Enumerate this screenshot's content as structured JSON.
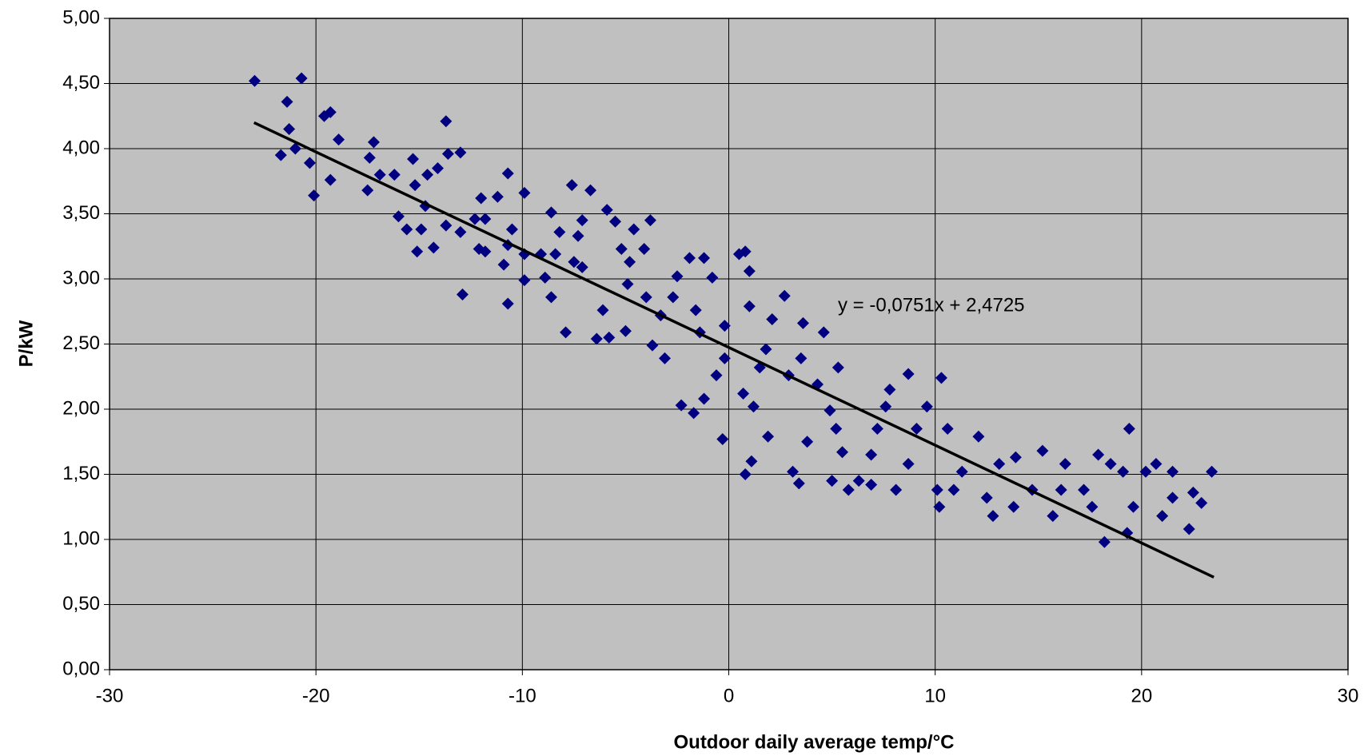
{
  "chart_data": {
    "type": "scatter",
    "xlabel": "Outdoor daily average temp/°C",
    "ylabel": "P/kW",
    "annotation": "y = -0,0751x + 2,4725",
    "xlim": [
      -30,
      30
    ],
    "ylim": [
      0,
      5
    ],
    "xticks": [
      -30,
      -20,
      -10,
      0,
      10,
      20,
      30
    ],
    "yticks": [
      {
        "value": 0,
        "label": "0,00"
      },
      {
        "value": 0.5,
        "label": "0,50"
      },
      {
        "value": 1,
        "label": "1,00"
      },
      {
        "value": 1.5,
        "label": "1,50"
      },
      {
        "value": 2,
        "label": "2,00"
      },
      {
        "value": 2.5,
        "label": "2,50"
      },
      {
        "value": 3,
        "label": "3,00"
      },
      {
        "value": 3.5,
        "label": "3,50"
      },
      {
        "value": 4,
        "label": "4,00"
      },
      {
        "value": 4.5,
        "label": "4,50"
      },
      {
        "value": 5,
        "label": "5,00"
      }
    ],
    "grid": true,
    "background": "#c0c0c0",
    "series": [
      {
        "color": "#000080",
        "x": [
          -22.97,
          -20.7,
          -21.4,
          -21.3,
          -21.7,
          -21.0,
          -19.3,
          -19.6,
          -18.9,
          -20.3,
          -19.3,
          -20.1,
          -17.2,
          -17.4,
          -17.5,
          -16.9,
          -16.2,
          -15.3,
          -15.2,
          -13.7,
          -13.6,
          -13.0,
          -14.1,
          -14.6,
          -16.0,
          -15.6,
          -14.9,
          -15.1,
          -14.3,
          -14.7,
          -13.7,
          -13.0,
          -12.9,
          -12.0,
          -12.3,
          -11.8,
          -12.1,
          -11.8,
          -11.2,
          -10.7,
          -10.5,
          -10.7,
          -10.9,
          -10.7,
          -9.9,
          -9.9,
          -9.9,
          -8.9,
          -8.6,
          -8.6,
          -8.2,
          -8.4,
          -7.6,
          -6.7,
          -7.1,
          -7.3,
          -7.9,
          -7.5,
          -7.1,
          -6.4,
          -5.8,
          -6.1,
          -5.9,
          -5.5,
          -5.2,
          -4.9,
          -5.0,
          -4.6,
          -3.8,
          -4.1,
          -4.0,
          -3.7,
          -3.1,
          -3.3,
          -2.7,
          -2.5,
          -1.9,
          -1.2,
          -0.8,
          -1.6,
          -1.4,
          -2.3,
          -1.7,
          -1.2,
          -0.6,
          -0.2,
          0.5,
          0.8,
          -0.3,
          1.0,
          1.0,
          0.8,
          1.1,
          1.5,
          1.2,
          1.8,
          2.1,
          2.7,
          2.9,
          3.5,
          3.6,
          3.4,
          3.1,
          3.8,
          4.6,
          4.3,
          4.9,
          5.3,
          5.2,
          5.0,
          5.5,
          5.8,
          6.3,
          6.9,
          7.2,
          7.6,
          7.8,
          8.1,
          8.7,
          8.7,
          9.1,
          9.6,
          10.3,
          10.6,
          10.2,
          10.9,
          11.3,
          12.1,
          12.5,
          13.1,
          13.8,
          13.9,
          14.7,
          15.2,
          15.7,
          16.1,
          16.3,
          17.2,
          17.6,
          17.9,
          18.2,
          18.5,
          19.4,
          19.3,
          19.1,
          19.6,
          20.2,
          20.7,
          21.0,
          21.5,
          21.5,
          22.3,
          22.5,
          22.9,
          23.4,
          10.1,
          12.8,
          6.9,
          0.7,
          -0.2,
          1.9,
          -4.8,
          -9.1
        ],
        "values": [
          4.52,
          4.54,
          4.36,
          4.15,
          3.95,
          4.0,
          4.28,
          4.25,
          4.07,
          3.89,
          3.76,
          3.64,
          4.05,
          3.93,
          3.68,
          3.8,
          3.8,
          3.92,
          3.72,
          4.21,
          3.96,
          3.97,
          3.85,
          3.8,
          3.48,
          3.38,
          3.38,
          3.21,
          3.24,
          3.56,
          3.41,
          3.36,
          2.88,
          3.62,
          3.46,
          3.46,
          3.23,
          3.21,
          3.63,
          3.81,
          3.38,
          3.26,
          3.11,
          2.81,
          3.66,
          3.19,
          2.99,
          3.01,
          2.86,
          3.51,
          3.36,
          3.19,
          3.72,
          3.68,
          3.45,
          3.33,
          2.59,
          3.13,
          3.09,
          2.54,
          2.55,
          2.76,
          3.53,
          3.44,
          3.23,
          2.96,
          2.6,
          3.38,
          3.45,
          3.23,
          2.86,
          2.49,
          2.39,
          2.72,
          2.86,
          3.02,
          3.16,
          3.16,
          3.01,
          2.76,
          2.59,
          2.03,
          1.97,
          2.08,
          2.26,
          2.64,
          3.19,
          3.21,
          1.77,
          3.06,
          2.79,
          1.5,
          1.6,
          2.32,
          2.02,
          2.46,
          2.69,
          2.87,
          2.26,
          2.39,
          2.66,
          1.43,
          1.52,
          1.75,
          2.59,
          2.19,
          1.99,
          2.32,
          1.85,
          1.45,
          1.67,
          1.38,
          1.45,
          1.65,
          1.85,
          2.02,
          2.15,
          1.38,
          1.58,
          2.27,
          1.85,
          2.02,
          2.24,
          1.85,
          1.25,
          1.38,
          1.52,
          1.79,
          1.32,
          1.58,
          1.25,
          1.63,
          1.38,
          1.68,
          1.18,
          1.38,
          1.58,
          1.38,
          1.25,
          1.65,
          0.98,
          1.58,
          1.85,
          1.05,
          1.52,
          1.25,
          1.52,
          1.58,
          1.18,
          1.52,
          1.32,
          1.08,
          1.36,
          1.28,
          1.52,
          1.38,
          1.18,
          1.42,
          2.12,
          2.39,
          1.79,
          3.13,
          3.19
        ]
      }
    ],
    "trendline": {
      "color": "#000000",
      "x": [
        -23,
        23.5
      ],
      "y": [
        4.2,
        0.71
      ]
    }
  }
}
